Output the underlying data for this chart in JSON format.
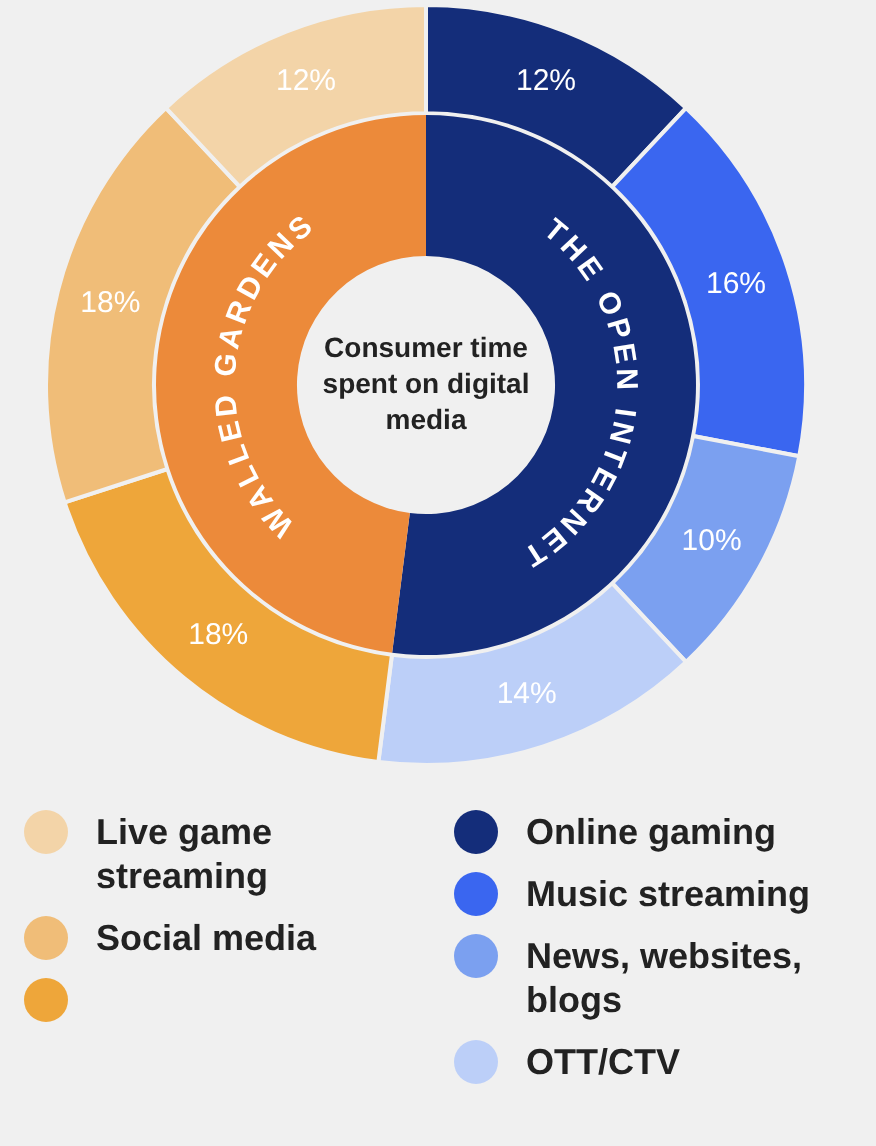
{
  "chart_data": [
    {
      "type": "donut",
      "title": "Consumer time spent on digital media",
      "categories": [
        "Online gaming",
        "Music streaming",
        "News, websites, blogs",
        "OTT/CTV",
        null,
        "Social media",
        "Live game streaming"
      ],
      "values": [
        12,
        16,
        10,
        14,
        18,
        18,
        12
      ],
      "value_labels": [
        "12%",
        "16%",
        "10%",
        "14%",
        "18%",
        "18%",
        "12%"
      ],
      "colors": [
        "#142d7a",
        "#3a66f0",
        "#7ba0f0",
        "#bccff8",
        "#eea63a",
        "#f0bd78",
        "#f3d4a8"
      ],
      "legend": "bottom"
    },
    {
      "type": "donut",
      "categories": [
        "THE OPEN INTERNET",
        "WALLED GARDENS"
      ],
      "values": [
        52,
        48
      ],
      "colors": [
        "#142d7a",
        "#ec8a3a"
      ]
    }
  ]
}
